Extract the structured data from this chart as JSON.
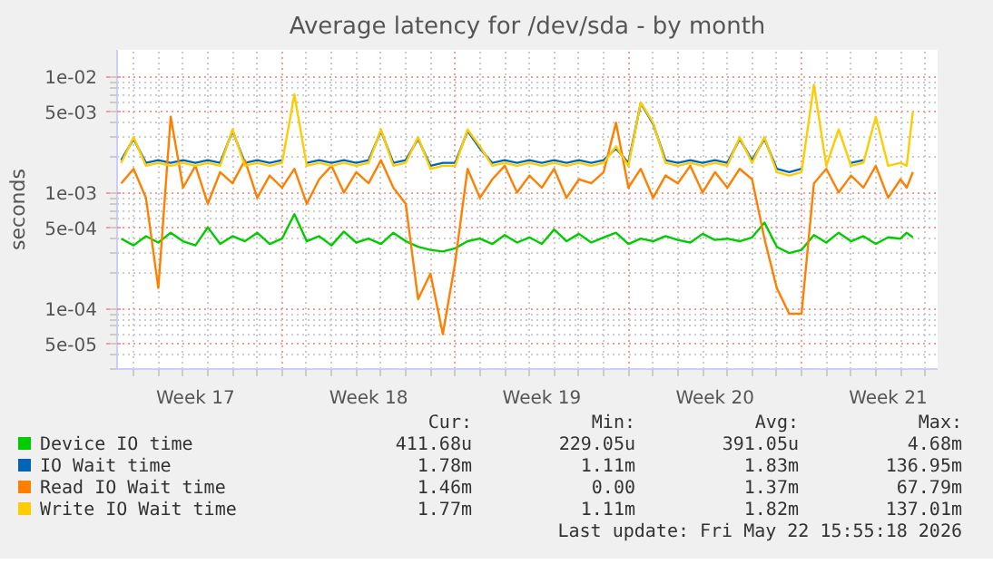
{
  "chart_data": {
    "type": "line",
    "title": "Average latency for /dev/sda - by month",
    "ylabel": "seconds",
    "log": "y",
    "grid": true,
    "legend": "bottom",
    "ylim": [
      3e-05,
      0.017
    ],
    "yticks": [
      {
        "value": 0.01,
        "label": "1e-02"
      },
      {
        "value": 0.005,
        "label": "5e-03"
      },
      {
        "value": 0.001,
        "label": "1e-03"
      },
      {
        "value": 0.0005,
        "label": "5e-04"
      },
      {
        "value": 0.0001,
        "label": "1e-04"
      },
      {
        "value": 5e-05,
        "label": "5e-05"
      }
    ],
    "xlim": [
      "2026-04-20T08:00",
      "2026-05-23T12:00"
    ],
    "xticks": [
      {
        "value": "2026-04-23T12:00",
        "label": "Week 17"
      },
      {
        "value": "2026-04-27",
        "label": null
      },
      {
        "value": "2026-04-30T12:00",
        "label": "Week 18"
      },
      {
        "value": "2026-05-04",
        "label": null
      },
      {
        "value": "2026-05-07T12:00",
        "label": "Week 19"
      },
      {
        "value": "2026-05-11",
        "label": null
      },
      {
        "value": "2026-05-14T12:00",
        "label": "Week 20"
      },
      {
        "value": "2026-05-18",
        "label": null
      },
      {
        "value": "2026-05-21T12:00",
        "label": "Week 21"
      }
    ],
    "x": [
      "2026-04-20T12:00",
      "2026-04-21",
      "2026-04-21T12:00",
      "2026-04-22",
      "2026-04-22T12:00",
      "2026-04-23",
      "2026-04-23T12:00",
      "2026-04-24",
      "2026-04-24T12:00",
      "2026-04-25",
      "2026-04-25T12:00",
      "2026-04-26",
      "2026-04-26T12:00",
      "2026-04-27",
      "2026-04-27T12:00",
      "2026-04-28",
      "2026-04-28T12:00",
      "2026-04-29",
      "2026-04-29T12:00",
      "2026-04-30",
      "2026-04-30T12:00",
      "2026-05-01",
      "2026-05-01T12:00",
      "2026-05-02",
      "2026-05-02T12:00",
      "2026-05-03",
      "2026-05-03T12:00",
      "2026-05-04",
      "2026-05-04T12:00",
      "2026-05-05",
      "2026-05-05T12:00",
      "2026-05-06",
      "2026-05-06T12:00",
      "2026-05-07",
      "2026-05-07T12:00",
      "2026-05-08",
      "2026-05-08T12:00",
      "2026-05-09",
      "2026-05-09T12:00",
      "2026-05-10",
      "2026-05-10T12:00",
      "2026-05-11",
      "2026-05-11T12:00",
      "2026-05-12",
      "2026-05-12T12:00",
      "2026-05-13",
      "2026-05-13T12:00",
      "2026-05-14",
      "2026-05-14T12:00",
      "2026-05-15",
      "2026-05-15T12:00",
      "2026-05-16",
      "2026-05-16T12:00",
      "2026-05-17",
      "2026-05-17T12:00",
      "2026-05-18",
      "2026-05-18T12:00",
      "2026-05-19",
      "2026-05-19T12:00",
      "2026-05-20",
      "2026-05-20T12:00",
      "2026-05-21",
      "2026-05-21T12:00",
      "2026-05-22",
      "2026-05-22T06:00",
      "2026-05-22T12:00"
    ],
    "series": [
      {
        "name": "Device IO time",
        "color": "#00cc00",
        "values": [
          0.0004,
          0.00035,
          0.00042,
          0.00037,
          0.00045,
          0.00038,
          0.00035,
          0.0005,
          0.00036,
          0.00042,
          0.00038,
          0.00045,
          0.00036,
          0.0004,
          0.00065,
          0.00038,
          0.00042,
          0.00035,
          0.00046,
          0.00037,
          0.0004,
          0.00036,
          0.00045,
          0.00038,
          0.00034,
          0.00032,
          0.00031,
          0.00033,
          0.00038,
          0.0004,
          0.00036,
          0.00043,
          0.00037,
          0.00041,
          0.00036,
          0.00048,
          0.00038,
          0.00044,
          0.00037,
          0.00041,
          0.00045,
          0.00036,
          0.0004,
          0.00038,
          0.00042,
          0.00039,
          0.00037,
          0.00044,
          0.00039,
          0.0004,
          0.00038,
          0.00041,
          0.00055,
          0.00034,
          0.0003,
          0.00032,
          0.00043,
          0.00037,
          0.00045,
          0.00038,
          0.00042,
          0.00036,
          0.00041,
          0.0004,
          0.00045,
          0.00041
        ]
      },
      {
        "name": "IO Wait time",
        "color": "#0066b3",
        "values": [
          0.0019,
          0.0029,
          0.0018,
          0.0019,
          0.0018,
          0.0019,
          0.0018,
          0.0019,
          0.0018,
          0.0034,
          0.0018,
          0.0019,
          0.0018,
          0.0019,
          null,
          0.0018,
          0.0019,
          0.0018,
          0.0019,
          0.0018,
          0.0019,
          0.0034,
          0.0018,
          0.0019,
          0.0029,
          0.0017,
          0.0018,
          0.0018,
          0.0034,
          0.0024,
          0.0018,
          0.0019,
          0.0018,
          0.0019,
          0.0018,
          0.0019,
          0.0018,
          0.0019,
          0.0018,
          0.0019,
          0.0024,
          0.0018,
          0.0059,
          0.0039,
          0.0019,
          0.0018,
          0.0019,
          0.0018,
          0.0019,
          0.0018,
          0.0029,
          0.0019,
          0.0029,
          0.0016,
          0.0015,
          0.0016,
          null,
          null,
          null,
          0.0018,
          0.0019,
          null,
          null,
          null,
          null,
          null
        ]
      },
      {
        "name": "Read IO Wait time",
        "color": "#ff8000",
        "values": [
          0.0012,
          0.0016,
          0.0009,
          0.00015,
          0.0045,
          0.0011,
          0.0017,
          0.0008,
          0.0015,
          0.0012,
          0.0019,
          0.0009,
          0.0014,
          0.0011,
          0.0016,
          0.0008,
          0.0013,
          0.0017,
          0.001,
          0.0015,
          0.0012,
          0.0019,
          0.0011,
          0.0008,
          0.00012,
          0.0002,
          6e-05,
          0.00025,
          0.0016,
          0.0009,
          0.0013,
          0.0017,
          0.001,
          0.0014,
          0.0011,
          0.0016,
          0.0009,
          0.0013,
          0.0012,
          0.0015,
          0.004,
          0.0011,
          0.0016,
          0.0009,
          0.0014,
          0.0012,
          0.0017,
          0.001,
          0.0015,
          0.0011,
          0.0016,
          0.0013,
          0.0004,
          0.00015,
          9e-05,
          9e-05,
          0.0012,
          0.0016,
          0.001,
          0.0014,
          0.0011,
          0.0017,
          0.0009,
          0.0013,
          0.0011,
          0.0015
        ]
      },
      {
        "name": "Write IO Wait time",
        "color": "#ffcc00",
        "values": [
          0.0018,
          0.003,
          0.0017,
          0.0018,
          0.0017,
          0.0018,
          0.0017,
          0.0018,
          0.0017,
          0.0035,
          0.0017,
          0.0018,
          0.0017,
          0.0018,
          0.007,
          0.0017,
          0.0018,
          0.0017,
          0.0018,
          0.0017,
          0.0018,
          0.0035,
          0.0017,
          0.0018,
          0.003,
          0.0016,
          0.0017,
          0.0017,
          0.0035,
          0.0025,
          0.0017,
          0.0018,
          0.0017,
          0.0018,
          0.0017,
          0.0018,
          0.0017,
          0.0018,
          0.0017,
          0.0018,
          0.0025,
          0.0017,
          0.006,
          0.004,
          0.0018,
          0.0017,
          0.0018,
          0.0017,
          0.0018,
          0.0017,
          0.003,
          0.0018,
          0.003,
          0.0015,
          0.0014,
          0.0015,
          0.0085,
          0.0017,
          0.0035,
          0.0017,
          0.0018,
          0.0045,
          0.0017,
          0.0018,
          0.0017,
          0.005
        ]
      }
    ],
    "annotations": [
      "Cur:",
      "Min:",
      "Avg:",
      "Max:",
      "411.68u",
      "229.05u",
      "391.05u",
      "4.68m",
      "1.78m",
      "1.11m",
      "1.83m",
      "136.95m",
      "1.46m",
      "0.00",
      "1.37m",
      "67.79m",
      "1.77m",
      "1.11m",
      "1.82m",
      "137.01m",
      "Last update: Fri May 22 15:55:18 2026"
    ]
  }
}
